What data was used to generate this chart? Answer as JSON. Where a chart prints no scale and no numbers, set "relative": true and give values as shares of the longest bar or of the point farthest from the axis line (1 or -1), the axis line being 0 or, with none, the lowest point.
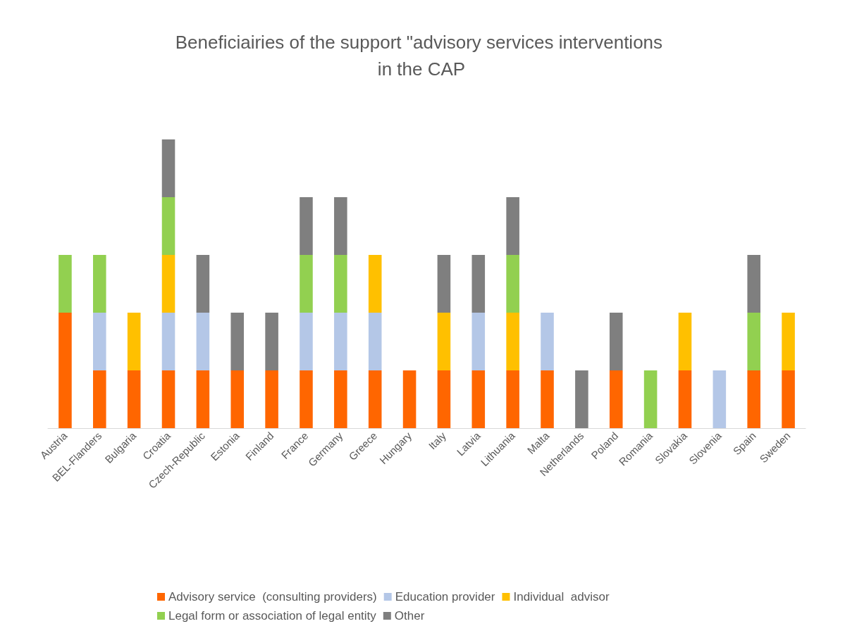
{
  "chart_data": {
    "type": "bar",
    "title": "Beneficiairies of the support \"advisory services interventions in the CAP",
    "relative": true,
    "stacked": true,
    "legend": "bottom",
    "categories": [
      "Austria",
      "BEL-Flanders",
      "Bulgaria",
      "Croatia",
      "Czech-Republic",
      "Estonia",
      "Finland",
      "France",
      "Germany",
      "Greece",
      "Hungary",
      "Italy",
      "Latvia",
      "Lithuania",
      "Malta",
      "Netherlands",
      "Poland",
      "Romania",
      "Slovakia",
      "Slovenia",
      "Spain",
      "Sweden"
    ],
    "series": [
      {
        "name": "Advisory service  (consulting providers)",
        "color": "#ff6600",
        "values": [
          0.4,
          0.2,
          0.2,
          0.2,
          0.2,
          0.2,
          0.2,
          0.2,
          0.2,
          0.2,
          0.2,
          0.2,
          0.2,
          0.2,
          0.2,
          null,
          0.2,
          null,
          0.2,
          null,
          0.2,
          0.2
        ]
      },
      {
        "name": "Education provider",
        "color": "#b4c7e7",
        "values": [
          null,
          0.2,
          null,
          0.2,
          0.2,
          null,
          null,
          0.2,
          0.2,
          0.2,
          null,
          null,
          0.2,
          null,
          0.2,
          null,
          null,
          null,
          null,
          0.2,
          null,
          null
        ]
      },
      {
        "name": "Individual  advisor",
        "color": "#ffc000",
        "values": [
          null,
          null,
          0.2,
          0.2,
          null,
          null,
          null,
          null,
          null,
          0.2,
          null,
          0.2,
          null,
          0.2,
          null,
          null,
          null,
          null,
          0.2,
          null,
          null,
          0.2
        ]
      },
      {
        "name": "Legal form or association of legal entity",
        "color": "#92d050",
        "values": [
          0.2,
          0.2,
          null,
          0.2,
          null,
          null,
          null,
          0.2,
          0.2,
          null,
          null,
          null,
          null,
          0.2,
          null,
          null,
          null,
          0.2,
          null,
          null,
          0.2,
          null
        ]
      },
      {
        "name": "Other",
        "color": "#7f7f7f",
        "values": [
          null,
          null,
          null,
          0.2,
          0.2,
          0.2,
          0.2,
          0.2,
          0.2,
          null,
          null,
          0.2,
          0.2,
          0.2,
          null,
          0.2,
          0.2,
          null,
          null,
          null,
          0.2,
          null
        ]
      }
    ]
  }
}
